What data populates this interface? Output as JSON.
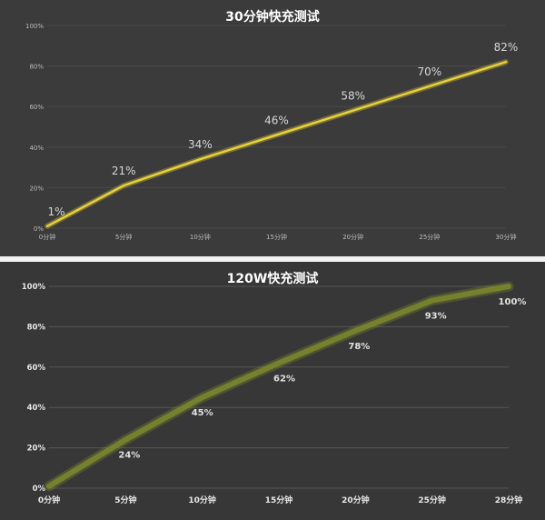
{
  "chart_data": [
    {
      "type": "line",
      "title": "30分钟快充测试",
      "categories": [
        "0分钟",
        "5分钟",
        "10分钟",
        "15分钟",
        "20分钟",
        "25分钟",
        "30分钟"
      ],
      "values": [
        1,
        21,
        34,
        46,
        58,
        70,
        82
      ],
      "data_labels": [
        "1%",
        "21%",
        "34%",
        "46%",
        "58%",
        "70%",
        "82%"
      ],
      "y_ticks": [
        "0%",
        "20%",
        "40%",
        "60%",
        "80%",
        "100%"
      ],
      "ylim": [
        0,
        100
      ],
      "grid": true,
      "line_color": "#e8d23a"
    },
    {
      "type": "line",
      "title": "120W快充测试",
      "categories": [
        "0分钟",
        "5分钟",
        "10分钟",
        "15分钟",
        "20分钟",
        "25分钟",
        "28分钟"
      ],
      "values": [
        1,
        24,
        45,
        62,
        78,
        93,
        100
      ],
      "data_labels": [
        "",
        "24%",
        "45%",
        "62%",
        "78%",
        "93%",
        "100%"
      ],
      "y_ticks": [
        "0%",
        "20%",
        "40%",
        "60%",
        "80%",
        "100%"
      ],
      "ylim": [
        0,
        100
      ],
      "grid": true,
      "line_color": "#7d8a2e"
    }
  ]
}
